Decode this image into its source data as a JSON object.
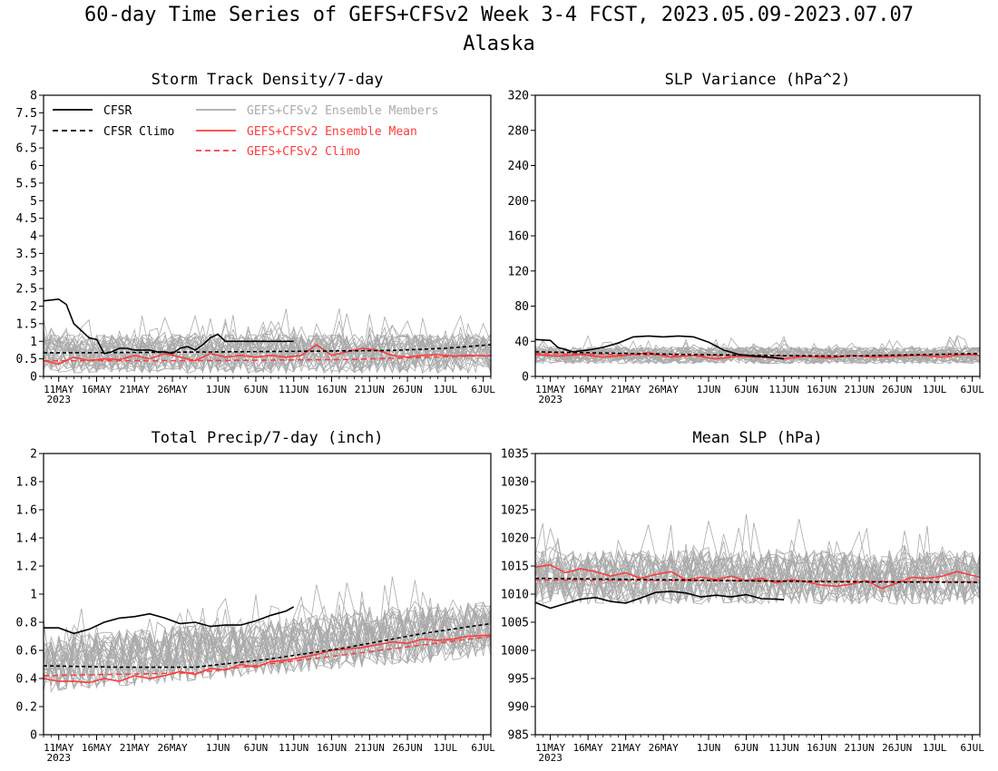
{
  "figure": {
    "title": "60-day Time Series of GEFS+CFSv2 Week 3-4 FCST, 2023.05.09-2023.07.07",
    "subtitle": "Alaska"
  },
  "colors": {
    "cfsr": "#000000",
    "members": "#aaaaaa",
    "mean": "#ff3b3b",
    "climo": "#ff3b3b"
  },
  "x_axis": {
    "tick_labels": [
      "11MAY",
      "16MAY",
      "21MAY",
      "26MAY",
      "1JUN",
      "6JUN",
      "11JUN",
      "16JUN",
      "21JUN",
      "26JUN",
      "1JUL",
      "6JUL"
    ],
    "tick_day_index": [
      2,
      7,
      12,
      17,
      23,
      28,
      33,
      38,
      43,
      48,
      53,
      58
    ],
    "year_label": "2023",
    "day_range": [
      0,
      59
    ]
  },
  "legend": {
    "cfsr": "CFSR",
    "cfsr_climo": "CFSR Climo",
    "members": "GEFS+CFSv2 Ensemble Members",
    "mean": "GEFS+CFSv2 Ensemble Mean",
    "climo": "GEFS+CFSv2 Climo"
  },
  "chart_data": [
    {
      "type": "line",
      "title": "Storm Track Density/7-day",
      "ylim": [
        0,
        8
      ],
      "yticks": [
        "0",
        "0.5",
        "1",
        "1.5",
        "2",
        "2.5",
        "3",
        "3.5",
        "4",
        "4.5",
        "5",
        "5.5",
        "6",
        "6.5",
        "7",
        "7.5",
        "8"
      ],
      "cfsr": {
        "x": [
          0,
          2,
          3,
          4,
          5,
          6,
          7,
          8,
          9,
          10,
          11,
          12,
          13,
          14,
          15,
          16,
          17,
          18,
          19,
          20,
          21,
          22,
          23,
          24,
          25,
          26,
          27,
          28,
          29,
          30,
          31,
          32,
          33
        ],
        "y": [
          2.15,
          2.2,
          2.05,
          1.5,
          1.3,
          1.1,
          1.05,
          0.65,
          0.7,
          0.8,
          0.8,
          0.75,
          0.75,
          0.75,
          0.7,
          0.7,
          0.65,
          0.8,
          0.85,
          0.75,
          0.9,
          1.1,
          1.2,
          1.0,
          1.0,
          1.0,
          1.0,
          1.0,
          1.0,
          1.0,
          1.0,
          1.0,
          1.0
        ]
      },
      "cfsr_climo": {
        "x": [
          0,
          12,
          24,
          36,
          46,
          53,
          59
        ],
        "y": [
          0.67,
          0.68,
          0.7,
          0.72,
          0.74,
          0.8,
          0.9
        ]
      },
      "mean": {
        "x": [
          0,
          2,
          4,
          6,
          8,
          10,
          12,
          14,
          16,
          18,
          20,
          22,
          24,
          26,
          28,
          30,
          32,
          34,
          36,
          38,
          40,
          42,
          44,
          46,
          48,
          50,
          52,
          54,
          56,
          59
        ],
        "y": [
          0.45,
          0.35,
          0.55,
          0.45,
          0.5,
          0.48,
          0.6,
          0.5,
          0.65,
          0.55,
          0.45,
          0.65,
          0.55,
          0.6,
          0.55,
          0.6,
          0.55,
          0.6,
          0.9,
          0.6,
          0.7,
          0.8,
          0.75,
          0.6,
          0.55,
          0.6,
          0.62,
          0.58,
          0.6,
          0.58
        ]
      },
      "climo": {
        "x": [
          0,
          20,
          40,
          59
        ],
        "y": [
          0.45,
          0.45,
          0.48,
          0.6
        ]
      },
      "members": {
        "count": 30,
        "center": 0.65,
        "spread": 0.7,
        "floor": 0
      }
    },
    {
      "type": "line",
      "title": "SLP Variance (hPa^2)",
      "ylim": [
        0,
        320
      ],
      "yticks": [
        "0",
        "40",
        "80",
        "120",
        "160",
        "200",
        "240",
        "280",
        "320"
      ],
      "cfsr": {
        "x": [
          0,
          2,
          3,
          5,
          7,
          9,
          11,
          13,
          15,
          17,
          19,
          21,
          23,
          25,
          27,
          29,
          31,
          33
        ],
        "y": [
          42,
          41,
          33,
          28,
          30,
          33,
          38,
          45,
          46,
          45,
          46,
          45,
          39,
          30,
          25,
          23,
          22,
          20
        ]
      },
      "cfsr_climo": {
        "x": [
          0,
          20,
          40,
          59
        ],
        "y": [
          28,
          25,
          23,
          26
        ]
      },
      "mean": {
        "x": [
          0,
          3,
          6,
          9,
          12,
          15,
          18,
          21,
          24,
          27,
          30,
          33,
          36,
          39,
          42,
          45,
          48,
          51,
          54,
          57,
          59
        ],
        "y": [
          25,
          23,
          25,
          22,
          24,
          27,
          22,
          24,
          20,
          23,
          22,
          20,
          23,
          21,
          24,
          22,
          23,
          24,
          22,
          25,
          24
        ]
      },
      "climo": {
        "x": [
          0,
          20,
          40,
          59
        ],
        "y": [
          26,
          24,
          23,
          25
        ]
      },
      "members": {
        "count": 30,
        "center": 24,
        "spread": 12,
        "floor": 0
      }
    },
    {
      "type": "line",
      "title": "Total Precip/7-day (inch)",
      "ylim": [
        0,
        2
      ],
      "yticks": [
        "0",
        "0.2",
        "0.4",
        "0.6",
        "0.8",
        "1",
        "1.2",
        "1.4",
        "1.6",
        "1.8",
        "2"
      ],
      "cfsr": {
        "x": [
          0,
          2,
          4,
          6,
          8,
          10,
          12,
          14,
          16,
          18,
          20,
          22,
          24,
          26,
          28,
          30,
          32,
          33
        ],
        "y": [
          0.76,
          0.76,
          0.72,
          0.75,
          0.8,
          0.83,
          0.84,
          0.86,
          0.83,
          0.79,
          0.8,
          0.77,
          0.78,
          0.78,
          0.81,
          0.85,
          0.88,
          0.91
        ]
      },
      "cfsr_climo": {
        "x": [
          0,
          10,
          20,
          30,
          40,
          50,
          59
        ],
        "y": [
          0.49,
          0.48,
          0.48,
          0.54,
          0.62,
          0.72,
          0.79
        ]
      },
      "mean": {
        "x": [
          0,
          2,
          4,
          6,
          8,
          10,
          12,
          14,
          16,
          18,
          20,
          22,
          24,
          26,
          28,
          30,
          32,
          34,
          36,
          38,
          40,
          42,
          44,
          46,
          48,
          50,
          52,
          54,
          56,
          59
        ],
        "y": [
          0.4,
          0.38,
          0.38,
          0.37,
          0.4,
          0.38,
          0.42,
          0.4,
          0.42,
          0.45,
          0.43,
          0.47,
          0.46,
          0.5,
          0.48,
          0.52,
          0.53,
          0.55,
          0.57,
          0.6,
          0.61,
          0.62,
          0.64,
          0.66,
          0.65,
          0.68,
          0.67,
          0.68,
          0.7,
          0.71
        ]
      },
      "climo": {
        "x": [
          0,
          20,
          40,
          59
        ],
        "y": [
          0.42,
          0.44,
          0.57,
          0.7
        ]
      },
      "members": {
        "count": 30,
        "center": 0.5,
        "spread": 0.25,
        "floor": 0.08,
        "trend": 0.25
      }
    },
    {
      "type": "line",
      "title": "Mean SLP (hPa)",
      "ylim": [
        985,
        1035
      ],
      "yticks": [
        "985",
        "990",
        "995",
        "1000",
        "1005",
        "1010",
        "1015",
        "1020",
        "1025",
        "1030",
        "1035"
      ],
      "cfsr": {
        "x": [
          0,
          2,
          4,
          6,
          8,
          10,
          12,
          14,
          16,
          18,
          20,
          22,
          24,
          26,
          28,
          30,
          32,
          33
        ],
        "y": [
          1008.5,
          1007.5,
          1008.3,
          1009.1,
          1009.4,
          1008.7,
          1008.4,
          1009.3,
          1010.3,
          1010.5,
          1010.2,
          1009.5,
          1009.8,
          1009.5,
          1009.9,
          1009.2,
          1009.1,
          1009.0
        ]
      },
      "cfsr_climo": {
        "x": [
          0,
          20,
          40,
          59
        ],
        "y": [
          1012.8,
          1012.5,
          1012.2,
          1012.1
        ]
      },
      "mean": {
        "x": [
          0,
          2,
          4,
          6,
          8,
          10,
          12,
          14,
          16,
          18,
          20,
          22,
          24,
          26,
          28,
          30,
          32,
          34,
          36,
          38,
          40,
          42,
          44,
          46,
          48,
          50,
          52,
          54,
          56,
          59
        ],
        "y": [
          1014.8,
          1015.2,
          1013.8,
          1014.5,
          1014.0,
          1013.2,
          1013.8,
          1012.8,
          1013.5,
          1014.0,
          1012.5,
          1013.0,
          1012.6,
          1013.2,
          1012.4,
          1012.8,
          1012.0,
          1012.6,
          1012.2,
          1011.6,
          1011.4,
          1011.8,
          1012.4,
          1011.0,
          1012.0,
          1013.0,
          1012.8,
          1013.2,
          1014.0,
          1013.0
        ]
      },
      "climo": {
        "x": [
          0,
          20,
          40,
          59
        ],
        "y": [
          1012.5,
          1012.4,
          1012.3,
          1012.2
        ]
      },
      "members": {
        "count": 30,
        "center": 1013,
        "spread": 6,
        "floor": 985
      }
    }
  ]
}
